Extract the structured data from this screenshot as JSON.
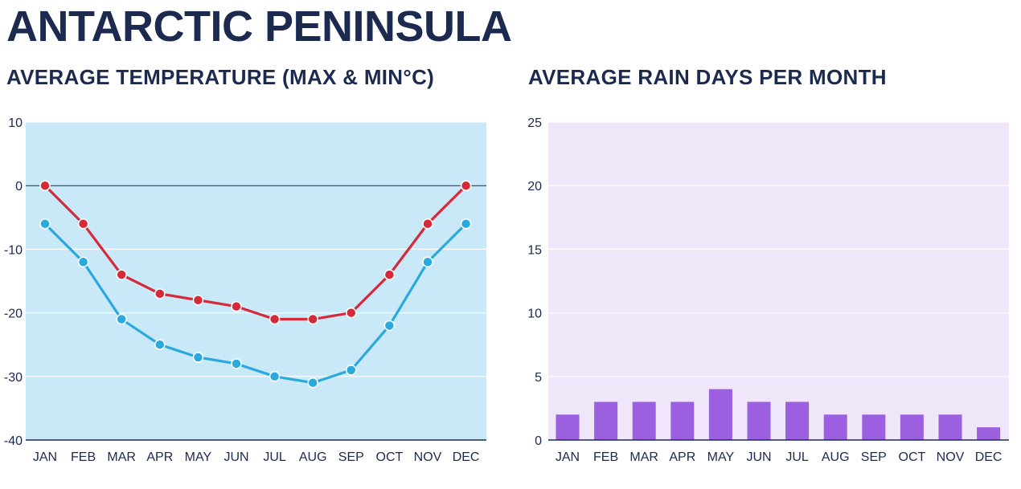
{
  "page": {
    "title": "ANTARCTIC PENINSULA"
  },
  "chart_data": [
    {
      "type": "line",
      "title": "AVERAGE TEMPERATURE (MAX & MIN°C)",
      "categories": [
        "JAN",
        "FEB",
        "MAR",
        "APR",
        "MAY",
        "JUN",
        "JUL",
        "AUG",
        "SEP",
        "OCT",
        "NOV",
        "DEC"
      ],
      "series": [
        {
          "name": "Max",
          "color": "#d42a3a",
          "values": [
            0,
            -6,
            -14,
            -17,
            -18,
            -19,
            -21,
            -21,
            -20,
            -14,
            -6,
            0
          ]
        },
        {
          "name": "Min",
          "color": "#2aa9dc",
          "values": [
            -6,
            -12,
            -21,
            -25,
            -27,
            -28,
            -30,
            -31,
            -29,
            -22,
            -12,
            -6
          ]
        }
      ],
      "ylim": [
        -40,
        10
      ],
      "yticks": [
        10,
        0,
        -10,
        -20,
        -30,
        -40
      ],
      "xlabel": "",
      "ylabel": "",
      "background": "#c9e8f8",
      "zero_line": true
    },
    {
      "type": "bar",
      "title": "AVERAGE RAIN DAYS PER MONTH",
      "categories": [
        "JAN",
        "FEB",
        "MAR",
        "APR",
        "MAY",
        "JUN",
        "JUL",
        "AUG",
        "SEP",
        "OCT",
        "NOV",
        "DEC"
      ],
      "values": [
        2,
        3,
        3,
        3,
        4,
        3,
        3,
        2,
        2,
        2,
        2,
        1
      ],
      "ylim": [
        0,
        25
      ],
      "yticks": [
        25,
        20,
        15,
        10,
        5,
        0
      ],
      "xlabel": "",
      "ylabel": "",
      "bar_color": "#9b5fe0",
      "background": "#efe6fa"
    }
  ]
}
